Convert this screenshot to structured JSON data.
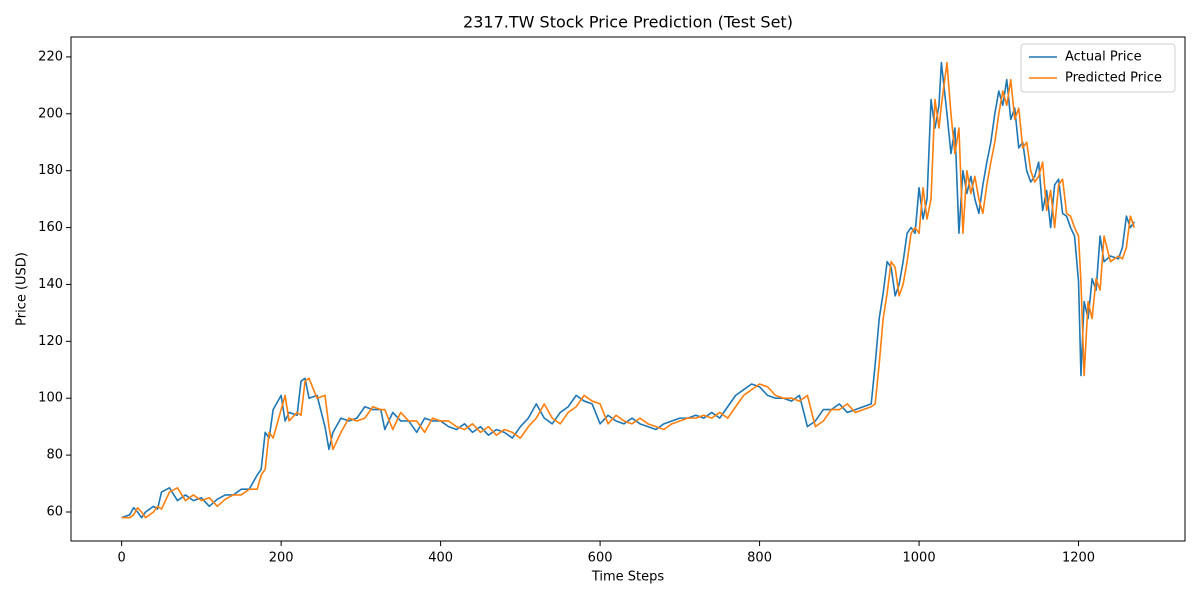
{
  "chart_data": {
    "type": "line",
    "title": "2317.TW Stock Price Prediction (Test Set)",
    "x_label": "Time Steps",
    "y_label": "Price (USD)",
    "x": [
      0,
      10,
      15,
      20,
      25,
      30,
      40,
      45,
      50,
      60,
      70,
      80,
      90,
      100,
      110,
      120,
      130,
      140,
      150,
      160,
      170,
      175,
      180,
      185,
      190,
      200,
      205,
      210,
      220,
      225,
      230,
      235,
      245,
      255,
      260,
      265,
      275,
      285,
      295,
      305,
      315,
      325,
      330,
      340,
      350,
      360,
      370,
      380,
      390,
      400,
      410,
      420,
      430,
      440,
      450,
      460,
      470,
      480,
      490,
      500,
      510,
      520,
      530,
      540,
      550,
      560,
      570,
      580,
      590,
      600,
      610,
      620,
      630,
      640,
      650,
      660,
      670,
      680,
      690,
      700,
      710,
      720,
      730,
      740,
      750,
      760,
      770,
      780,
      790,
      800,
      810,
      820,
      830,
      840,
      850,
      860,
      870,
      880,
      890,
      900,
      910,
      920,
      930,
      940,
      945,
      950,
      955,
      960,
      965,
      970,
      975,
      980,
      985,
      990,
      995,
      1000,
      1005,
      1010,
      1015,
      1020,
      1025,
      1028,
      1035,
      1040,
      1045,
      1050,
      1055,
      1060,
      1065,
      1070,
      1075,
      1080,
      1085,
      1090,
      1095,
      1100,
      1105,
      1110,
      1115,
      1120,
      1125,
      1130,
      1135,
      1140,
      1145,
      1150,
      1155,
      1160,
      1165,
      1170,
      1175,
      1180,
      1185,
      1190,
      1195,
      1200,
      1203,
      1207,
      1212,
      1217,
      1222,
      1227,
      1232,
      1240,
      1250,
      1255,
      1260,
      1265,
      1270
    ],
    "series": [
      {
        "name": "Actual Price",
        "color": "#1f77b4",
        "values": [
          58,
          59,
          61.5,
          60,
          58,
          60,
          62,
          61,
          67,
          68.5,
          64,
          66,
          64,
          65,
          62,
          64.5,
          66,
          66,
          68,
          68,
          73,
          75,
          88,
          86,
          96,
          101,
          92,
          95,
          94,
          106,
          107,
          100,
          101,
          90,
          82,
          88,
          93,
          92,
          93,
          97,
          96,
          96,
          89,
          95,
          92,
          92,
          88,
          93,
          92,
          92,
          90,
          89,
          91,
          88,
          90,
          87,
          89,
          88,
          86,
          90,
          93,
          98,
          93,
          91,
          95,
          97,
          101,
          99,
          98,
          91,
          94,
          92,
          91,
          93,
          91,
          90,
          89,
          91,
          92,
          93,
          93,
          94,
          93,
          95,
          93,
          97,
          101,
          103,
          105,
          104,
          101,
          100,
          100,
          99,
          101,
          90,
          92,
          96,
          96,
          98,
          95,
          96,
          97,
          98,
          112,
          128,
          137,
          148,
          146,
          136,
          140,
          148,
          158,
          160,
          158,
          174,
          163,
          170,
          205,
          195,
          203,
          218,
          200,
          186,
          195,
          158,
          180,
          172,
          178,
          170,
          165,
          175,
          183,
          190,
          200,
          208,
          203,
          212,
          198,
          202,
          188,
          190,
          180,
          176,
          178,
          183,
          166,
          173,
          160,
          175,
          177,
          165,
          164,
          160,
          157,
          141,
          108,
          134,
          128,
          142,
          138,
          157,
          148,
          150,
          149,
          153,
          164,
          160,
          162
        ]
      },
      {
        "name": "Predicted Price",
        "color": "#ff7f0e",
        "values": [
          58,
          58,
          59,
          61.5,
          60,
          58,
          60,
          62,
          61,
          67,
          68.5,
          64,
          66,
          64,
          65,
          62,
          64.5,
          66,
          66,
          68,
          68,
          73,
          75,
          88,
          86,
          96,
          101,
          92,
          95,
          94,
          106,
          107,
          100,
          101,
          90,
          82,
          88,
          93,
          92,
          93,
          97,
          96,
          96,
          89,
          95,
          92,
          92,
          88,
          93,
          92,
          92,
          90,
          89,
          91,
          88,
          90,
          87,
          89,
          88,
          86,
          90,
          93,
          98,
          93,
          91,
          95,
          97,
          101,
          99,
          98,
          91,
          94,
          92,
          91,
          93,
          91,
          90,
          89,
          91,
          92,
          93,
          93,
          94,
          93,
          95,
          93,
          97,
          101,
          103,
          105,
          104,
          101,
          100,
          100,
          99,
          101,
          90,
          92,
          96,
          96,
          98,
          95,
          96,
          97,
          98,
          112,
          128,
          137,
          148,
          146,
          136,
          140,
          148,
          158,
          160,
          158,
          174,
          163,
          170,
          205,
          195,
          203,
          218,
          200,
          186,
          195,
          158,
          180,
          172,
          178,
          170,
          165,
          175,
          183,
          190,
          200,
          208,
          203,
          212,
          198,
          202,
          188,
          190,
          180,
          176,
          178,
          183,
          166,
          173,
          160,
          175,
          177,
          165,
          164,
          160,
          157,
          141,
          108,
          134,
          128,
          142,
          138,
          157,
          148,
          150,
          149,
          153,
          164,
          160
        ]
      }
    ],
    "xlim": [
      -63.5,
      1333.5
    ],
    "ylim": [
      49.8,
      227.0
    ],
    "xticks": [
      0,
      200,
      400,
      600,
      800,
      1000,
      1200
    ],
    "yticks": [
      60,
      80,
      100,
      120,
      140,
      160,
      180,
      200,
      220
    ],
    "grid": false,
    "legend": "upper right"
  }
}
